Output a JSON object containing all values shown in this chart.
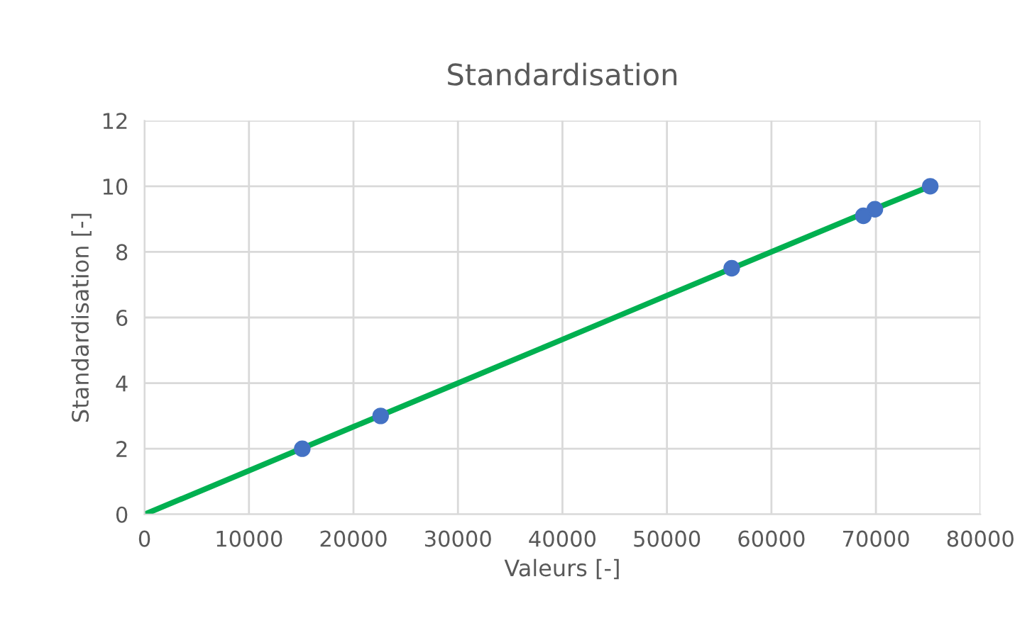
{
  "chart_data": {
    "type": "line",
    "title": "Standardisation",
    "xlabel": "Valeurs [-]",
    "ylabel": "Standardisation [-]",
    "xlim": [
      0,
      80000
    ],
    "xticks": [
      0,
      10000,
      20000,
      30000,
      40000,
      50000,
      60000,
      70000,
      80000
    ],
    "ylim": [
      0,
      12
    ],
    "yticks": [
      0,
      2,
      4,
      6,
      8,
      10,
      12
    ],
    "grid": true,
    "legend": false,
    "series": [
      {
        "color": "#00b050",
        "marker": "none",
        "x": [
          0,
          10000,
          20000,
          30000,
          40000,
          50000,
          60000,
          70000,
          75200
        ],
        "values": [
          0,
          1.33,
          2.67,
          4,
          5.33,
          6.67,
          8,
          9.33,
          10
        ]
      },
      {
        "type": "scatter",
        "color": "#4472c4",
        "marker": "circle",
        "x": [
          15100,
          22600,
          56200,
          68800,
          69900,
          75200
        ],
        "values": [
          2,
          3,
          7.5,
          9.1,
          9.3,
          10
        ]
      }
    ]
  }
}
